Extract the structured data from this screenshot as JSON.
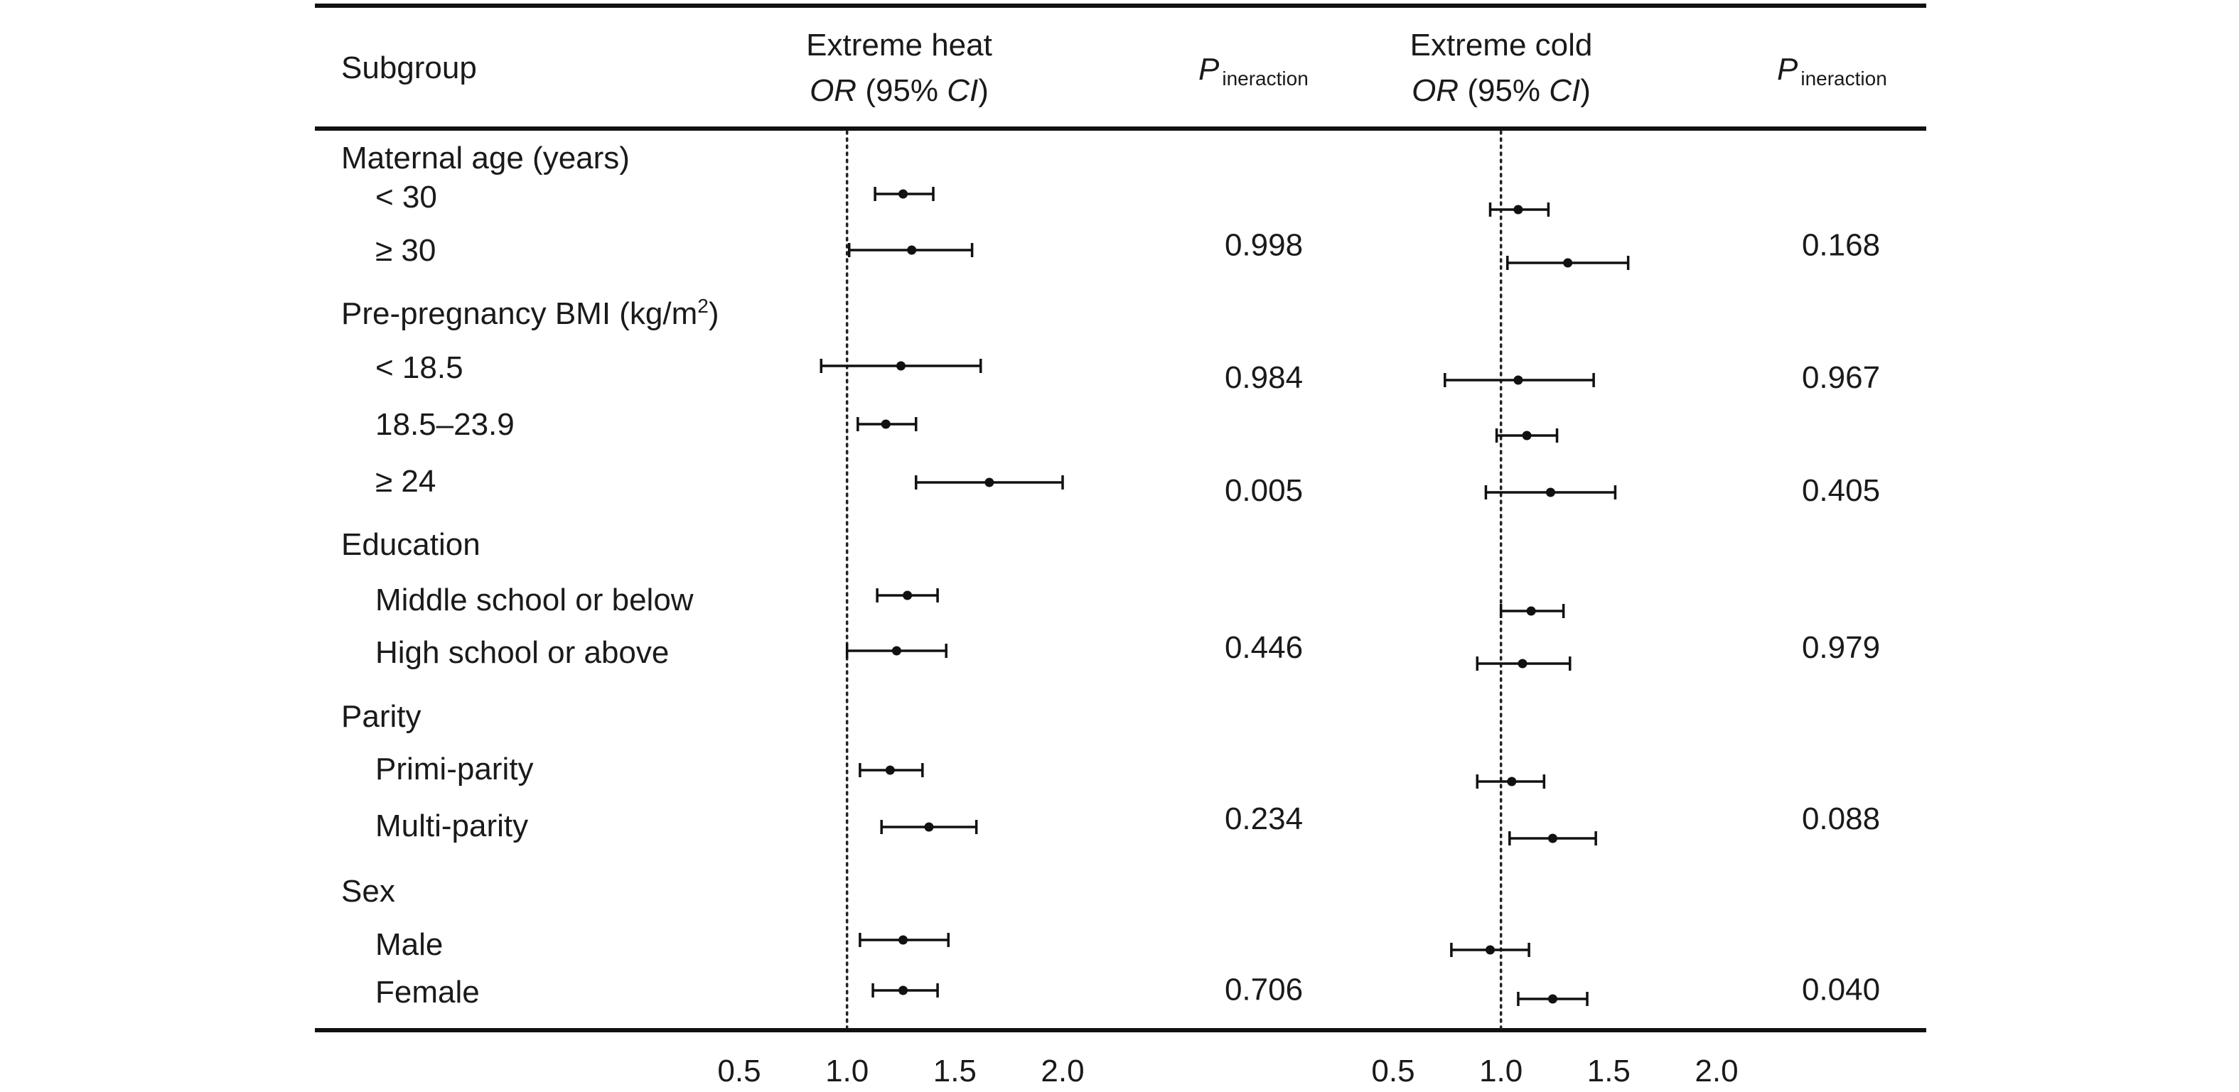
{
  "header": {
    "subgroup": "Subgroup",
    "heat_title": "Extreme heat",
    "cold_title": "Extreme cold",
    "or_label": "OR",
    "ci_label": "(95% ",
    "ci_italic": "CI",
    "ci_close": ")",
    "p_main": "P",
    "p_sub": "ineraction"
  },
  "chart_data": {
    "type": "forest",
    "xlim": [
      0.5,
      2.0
    ],
    "xticks": [
      "0.5",
      "1.0",
      "1.5",
      "2.0"
    ],
    "reference_line": 1.0,
    "panels": [
      {
        "name": "Extreme heat",
        "measure": "OR (95% CI)"
      },
      {
        "name": "Extreme cold",
        "measure": "OR (95% CI)"
      }
    ],
    "groups": [
      {
        "label": "Maternal age (years)",
        "p_heat": "0.998",
        "p_cold": "0.168",
        "items": [
          {
            "label": "< 30",
            "heat": [
              1.26,
              1.13,
              1.4
            ],
            "cold": [
              1.08,
              0.95,
              1.22
            ]
          },
          {
            "label": "≥ 30",
            "heat": [
              1.3,
              1.01,
              1.58
            ],
            "cold": [
              1.31,
              1.03,
              1.59
            ]
          }
        ]
      },
      {
        "label": "Pre-pregnancy BMI (kg/m",
        "label_sup": "2",
        "label_close": ")",
        "p_heat": "0.984",
        "p_cold": "0.967",
        "items": [
          {
            "label": "< 18.5",
            "heat": [
              1.25,
              0.88,
              1.62
            ],
            "cold": [
              1.08,
              0.74,
              1.43
            ]
          },
          {
            "label": "18.5–23.9",
            "heat": [
              1.18,
              1.05,
              1.32
            ],
            "cold": [
              1.12,
              0.98,
              1.26
            ]
          },
          {
            "label": "≥ 24",
            "heat": [
              1.66,
              1.32,
              2.0
            ],
            "cold": [
              1.23,
              0.93,
              1.53
            ]
          }
        ]
      },
      {
        "label": "Education",
        "p_heat": "0.446",
        "p_cold": "0.979",
        "items": [
          {
            "label": "Middle school or below",
            "heat": [
              1.28,
              1.14,
              1.42
            ],
            "cold": [
              1.14,
              1.0,
              1.29
            ]
          },
          {
            "label": "High school or above",
            "heat": [
              1.23,
              1.0,
              1.46
            ],
            "cold": [
              1.1,
              0.89,
              1.32
            ]
          }
        ]
      },
      {
        "label": "Parity",
        "p_heat": "0.234",
        "p_cold": "0.088",
        "items": [
          {
            "label": "Primi-parity",
            "heat": [
              1.2,
              1.06,
              1.35
            ],
            "cold": [
              1.05,
              0.89,
              1.2
            ]
          },
          {
            "label": "Multi-parity",
            "heat": [
              1.38,
              1.16,
              1.6
            ],
            "cold": [
              1.24,
              1.04,
              1.44
            ]
          }
        ]
      },
      {
        "label": "Sex",
        "p_heat": "0.706",
        "p_cold": "0.040",
        "items": [
          {
            "label": "Male",
            "heat": [
              1.26,
              1.06,
              1.47
            ],
            "cold": [
              0.95,
              0.77,
              1.13
            ]
          },
          {
            "label": "Female",
            "heat": [
              1.26,
              1.12,
              1.42
            ],
            "cold": [
              1.24,
              1.08,
              1.4
            ]
          }
        ]
      }
    ]
  }
}
